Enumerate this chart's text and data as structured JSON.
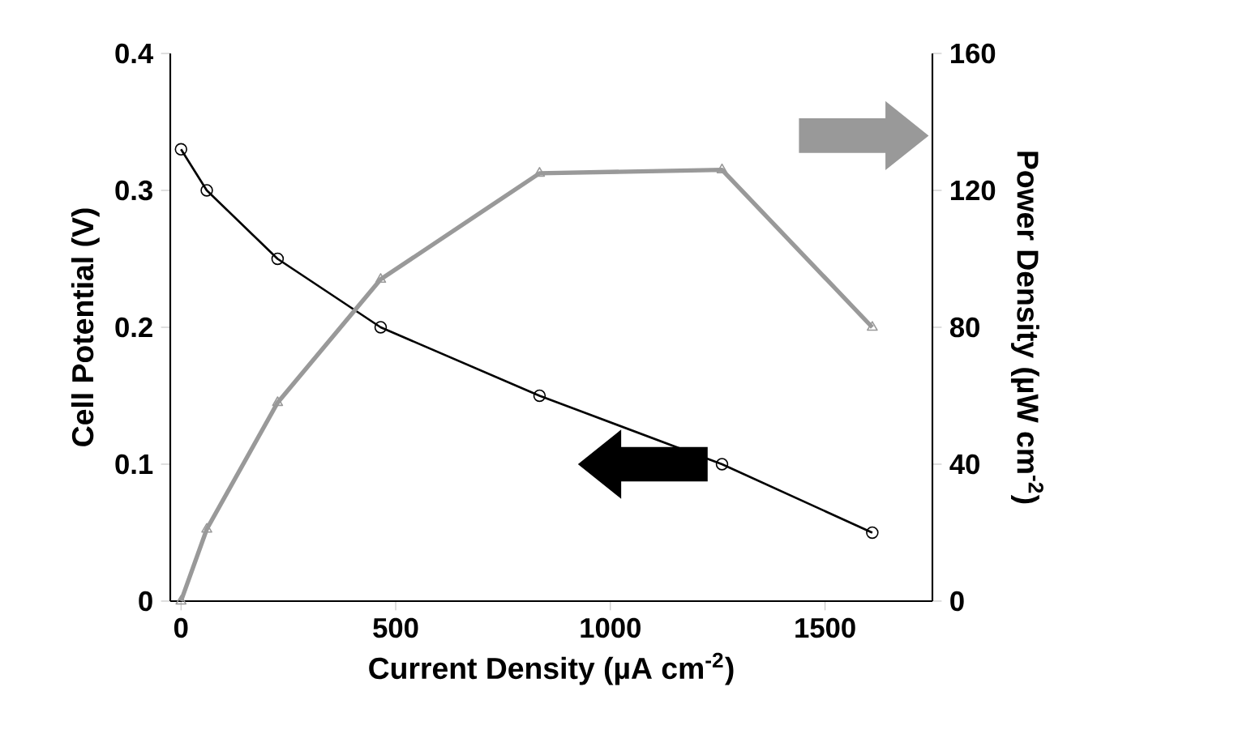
{
  "chart_data": {
    "type": "line",
    "xlabel": "Current Density (µA cm$^{-2}$)",
    "ylabel": "Cell Potential (V)",
    "y2label": "Power Density (µW cm$^{-2}$)",
    "xlim": [
      -25,
      1750
    ],
    "xticks": [
      0,
      500,
      1000,
      1500
    ],
    "ylim": [
      0,
      0.4
    ],
    "yticks": [
      0,
      0.1,
      0.2,
      0.3,
      0.4
    ],
    "y2lim": [
      0,
      160
    ],
    "y2ticks": [
      0,
      40,
      80,
      120,
      160
    ],
    "grid": false,
    "series": [
      {
        "color": "#000000",
        "marker": "circle",
        "x": [
          0,
          60,
          225,
          465,
          835,
          1260,
          1610
        ],
        "values": [
          0.33,
          0.3,
          0.25,
          0.2,
          0.15,
          0.1,
          0.05
        ]
      },
      {
        "color": "#999999",
        "marker": "triangle",
        "axis": "y2",
        "x": [
          0,
          60,
          225,
          465,
          835,
          1260,
          1610
        ],
        "values": [
          0,
          21,
          58,
          94,
          125,
          126,
          80
        ]
      }
    ]
  }
}
